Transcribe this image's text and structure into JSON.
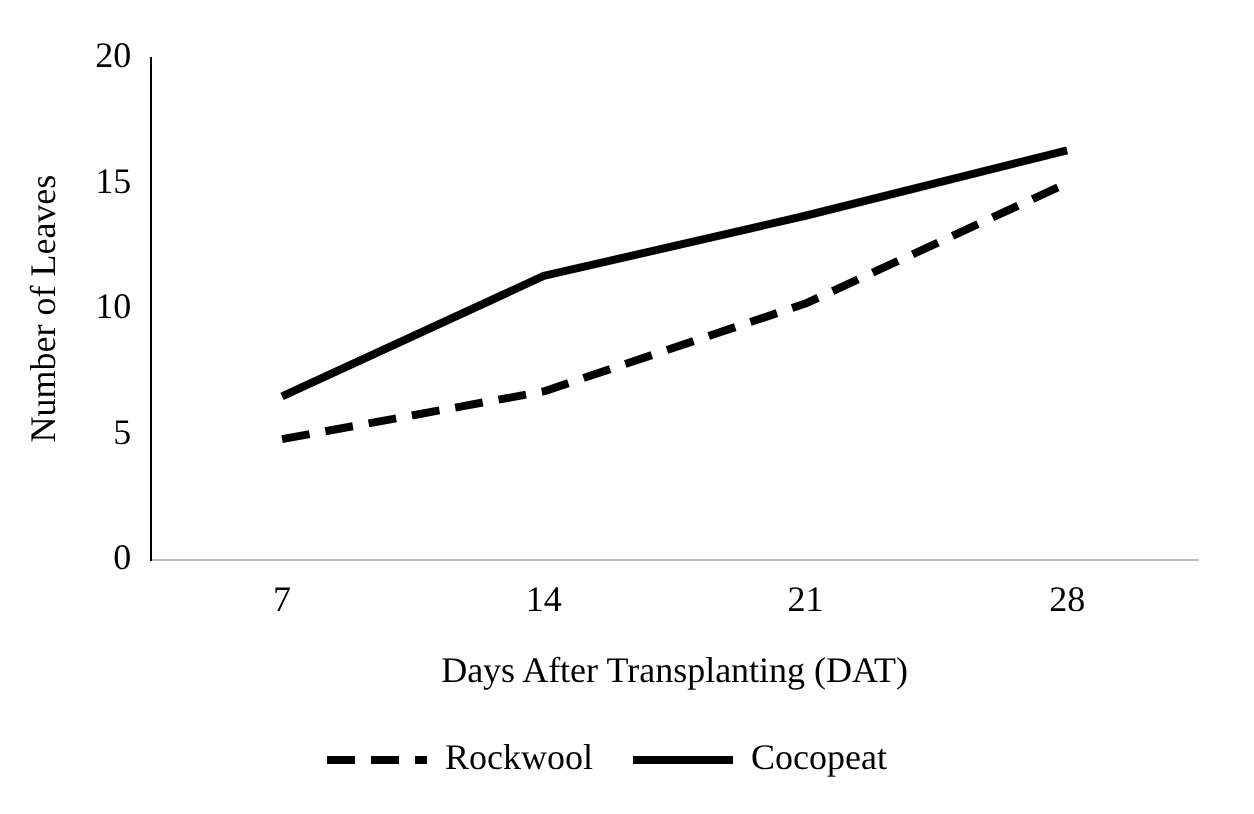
{
  "chart_data": {
    "type": "line",
    "xlabel": "Days After Transplanting (DAT)",
    "ylabel": "Number of Leaves",
    "categories": [
      "7",
      "14",
      "21",
      "28"
    ],
    "series": [
      {
        "name": "Rockwool",
        "color": "#000000",
        "line_style": "dashed",
        "values": [
          4.8,
          6.7,
          10.2,
          15.0
        ]
      },
      {
        "name": "Cocopeat",
        "color": "#000000",
        "line_style": "solid",
        "values": [
          6.5,
          11.3,
          13.7,
          16.3
        ]
      }
    ],
    "ylim": [
      0,
      20
    ],
    "yticks": [
      0,
      5,
      10,
      15,
      20
    ],
    "grid": false,
    "legend": "bottom",
    "marker": "none"
  }
}
